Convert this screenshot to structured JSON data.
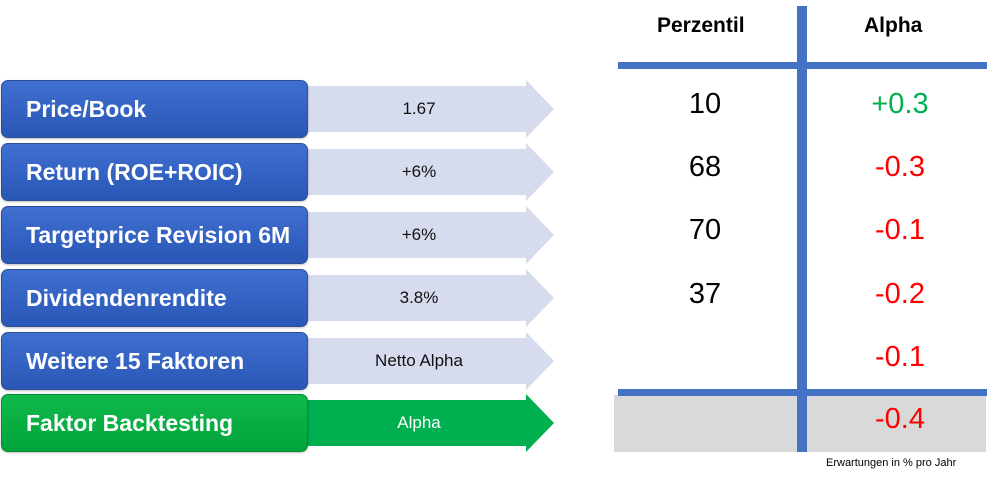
{
  "factors": [
    {
      "label": "Price/Book",
      "value": "1.67",
      "style": "blue"
    },
    {
      "label": "Return (ROE+ROIC)",
      "value": "+6%",
      "style": "blue"
    },
    {
      "label": "Targetprice Revision 6M",
      "value": "+6%",
      "style": "blue"
    },
    {
      "label": "Dividendenrendite",
      "value": "3.8%",
      "style": "blue"
    },
    {
      "label": "Weitere 15 Faktoren",
      "value": "Netto Alpha",
      "style": "blue"
    },
    {
      "label": "Faktor Backtesting",
      "value": "Alpha",
      "style": "green"
    }
  ],
  "table": {
    "header_perzentil": "Perzentil",
    "header_alpha": "Alpha",
    "perzentil": [
      "10",
      "68",
      "70",
      "37",
      "",
      ""
    ],
    "alpha": [
      "+0.3",
      "-0.3",
      "-0.1",
      "-0.2",
      "-0.1",
      "-0.4"
    ]
  },
  "footnote": "Erwartungen in % pro Jahr",
  "colors": {
    "blue": "#2f5fc3",
    "green": "#00b050",
    "arrow_light": "#d6dbee",
    "positive": "#00b050",
    "negative": "#ff0000",
    "table_line": "#4472c4"
  }
}
